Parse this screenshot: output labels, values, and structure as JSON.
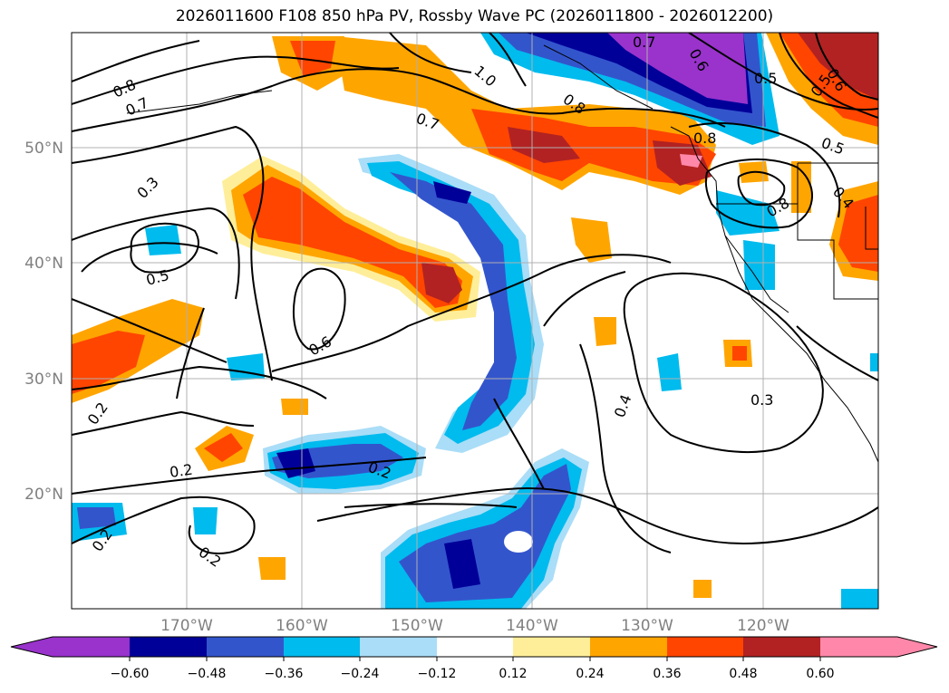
{
  "title": "2026011600 F108 850 hPa PV, Rossby Wave PC (2026011800 - 2026012200)",
  "map": {
    "lat_labels": [
      "50°N",
      "40°N",
      "30°N",
      "20°N"
    ],
    "lon_labels": [
      "170°W",
      "160°W",
      "150°W",
      "140°W",
      "130°W",
      "120°W"
    ],
    "contour_labels": [
      "0.8",
      "0.7",
      "1.0",
      "0.7",
      "0.8",
      "0.7",
      "0.6",
      "0.5",
      "0.8",
      "0.5",
      "0.5",
      "0.6",
      "0.8",
      "0.4",
      "0.3",
      "0.5",
      "0.6",
      "0.2",
      "0.2",
      "0.2",
      "0.2",
      "0.2",
      "0.4",
      "0.3"
    ]
  },
  "colorbar": {
    "colors": [
      "#9933cc",
      "#000099",
      "#3355cc",
      "#00bbee",
      "#aaddf7",
      "#ffffff",
      "#ffee99",
      "#ffa500",
      "#ff4500",
      "#b22222",
      "#ff88aa"
    ],
    "tick_labels": [
      "−0.60",
      "−0.48",
      "−0.36",
      "−0.24",
      "−0.12",
      "0.12",
      "0.24",
      "0.36",
      "0.48",
      "0.60"
    ]
  },
  "chart_data": {
    "type": "contour-map",
    "title": "2026011600 F108 850 hPa PV, Rossby Wave PC (2026011800 - 2026012200)",
    "lat_range": [
      10,
      60
    ],
    "lon_range": [
      -180,
      -110
    ],
    "shaded_levels": [
      -0.6,
      -0.48,
      -0.36,
      -0.24,
      -0.12,
      0.12,
      0.24,
      0.36,
      0.48,
      0.6
    ],
    "contour_values": [
      0.2,
      0.3,
      0.4,
      0.5,
      0.6,
      0.7,
      0.8,
      1.0
    ]
  }
}
